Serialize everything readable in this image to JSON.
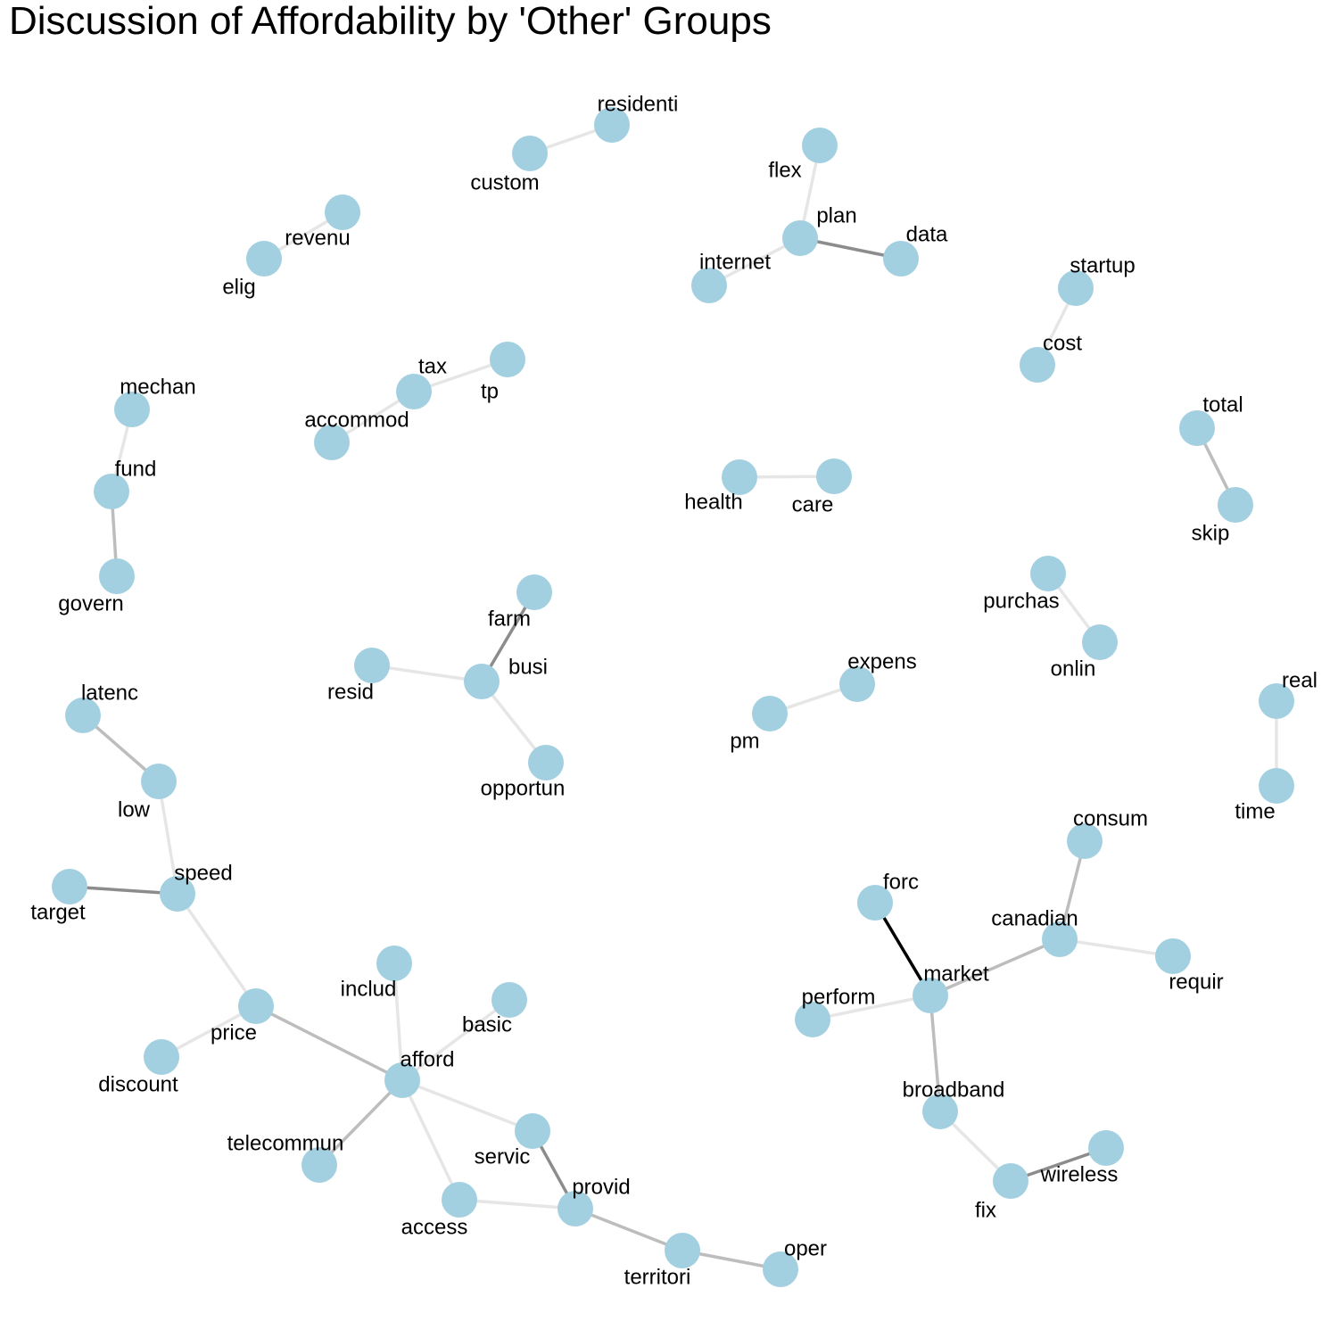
{
  "title": "Discussion of Affordability by 'Other' Groups",
  "colors": {
    "node_fill": "#a3d0e0",
    "edge_light": "#e6e6e6",
    "edge_mid": "#bdbdbd",
    "edge_dark": "#8c8c8c",
    "edge_black": "#000000"
  },
  "nodes": [
    {
      "id": "residenti",
      "label": "residenti"
    },
    {
      "id": "custom",
      "label": "custom"
    },
    {
      "id": "flex",
      "label": "flex"
    },
    {
      "id": "plan",
      "label": "plan"
    },
    {
      "id": "data",
      "label": "data"
    },
    {
      "id": "internet",
      "label": "internet"
    },
    {
      "id": "revenu",
      "label": "revenu"
    },
    {
      "id": "elig",
      "label": "elig"
    },
    {
      "id": "startup",
      "label": "startup"
    },
    {
      "id": "cost",
      "label": "cost"
    },
    {
      "id": "tax",
      "label": "tax"
    },
    {
      "id": "tp",
      "label": "tp"
    },
    {
      "id": "accommod",
      "label": "accommod"
    },
    {
      "id": "mechan",
      "label": "mechan"
    },
    {
      "id": "fund",
      "label": "fund"
    },
    {
      "id": "govern",
      "label": "govern"
    },
    {
      "id": "total",
      "label": "total"
    },
    {
      "id": "skip",
      "label": "skip"
    },
    {
      "id": "health",
      "label": "health"
    },
    {
      "id": "care",
      "label": "care"
    },
    {
      "id": "purchas",
      "label": "purchas"
    },
    {
      "id": "onlin",
      "label": "onlin"
    },
    {
      "id": "farm",
      "label": "farm"
    },
    {
      "id": "busi",
      "label": "busi"
    },
    {
      "id": "resid",
      "label": "resid"
    },
    {
      "id": "opportun",
      "label": "opportun"
    },
    {
      "id": "expens",
      "label": "expens"
    },
    {
      "id": "pm",
      "label": "pm"
    },
    {
      "id": "real",
      "label": "real"
    },
    {
      "id": "time",
      "label": "time"
    },
    {
      "id": "latenc",
      "label": "latenc"
    },
    {
      "id": "low",
      "label": "low"
    },
    {
      "id": "speed",
      "label": "speed"
    },
    {
      "id": "target",
      "label": "target"
    },
    {
      "id": "price",
      "label": "price"
    },
    {
      "id": "discount",
      "label": "discount"
    },
    {
      "id": "includ",
      "label": "includ"
    },
    {
      "id": "basic",
      "label": "basic"
    },
    {
      "id": "afford",
      "label": "afford"
    },
    {
      "id": "telecommun",
      "label": "telecommun"
    },
    {
      "id": "servic",
      "label": "servic"
    },
    {
      "id": "access",
      "label": "access"
    },
    {
      "id": "provid",
      "label": "provid"
    },
    {
      "id": "territori",
      "label": "territori"
    },
    {
      "id": "oper",
      "label": "oper"
    },
    {
      "id": "consum",
      "label": "consum"
    },
    {
      "id": "forc",
      "label": "forc"
    },
    {
      "id": "canadian",
      "label": "canadian"
    },
    {
      "id": "requir",
      "label": "requir"
    },
    {
      "id": "market",
      "label": "market"
    },
    {
      "id": "perform",
      "label": "perform"
    },
    {
      "id": "broadband",
      "label": "broadband"
    },
    {
      "id": "wireless",
      "label": "wireless"
    },
    {
      "id": "fix",
      "label": "fix"
    }
  ],
  "edges": [
    {
      "source": "custom",
      "target": "residenti",
      "strength": "light"
    },
    {
      "source": "flex",
      "target": "plan",
      "strength": "light"
    },
    {
      "source": "plan",
      "target": "data",
      "strength": "dark"
    },
    {
      "source": "plan",
      "target": "internet",
      "strength": "light"
    },
    {
      "source": "elig",
      "target": "revenu",
      "strength": "light"
    },
    {
      "source": "cost",
      "target": "startup",
      "strength": "light"
    },
    {
      "source": "accommod",
      "target": "tax",
      "strength": "light"
    },
    {
      "source": "tax",
      "target": "tp",
      "strength": "light"
    },
    {
      "source": "mechan",
      "target": "fund",
      "strength": "light"
    },
    {
      "source": "fund",
      "target": "govern",
      "strength": "mid"
    },
    {
      "source": "total",
      "target": "skip",
      "strength": "mid"
    },
    {
      "source": "health",
      "target": "care",
      "strength": "light"
    },
    {
      "source": "purchas",
      "target": "onlin",
      "strength": "light"
    },
    {
      "source": "farm",
      "target": "busi",
      "strength": "dark"
    },
    {
      "source": "resid",
      "target": "busi",
      "strength": "light"
    },
    {
      "source": "busi",
      "target": "opportun",
      "strength": "light"
    },
    {
      "source": "pm",
      "target": "expens",
      "strength": "light"
    },
    {
      "source": "real",
      "target": "time",
      "strength": "light"
    },
    {
      "source": "latenc",
      "target": "low",
      "strength": "mid"
    },
    {
      "source": "low",
      "target": "speed",
      "strength": "light"
    },
    {
      "source": "target",
      "target": "speed",
      "strength": "dark"
    },
    {
      "source": "speed",
      "target": "price",
      "strength": "light"
    },
    {
      "source": "price",
      "target": "discount",
      "strength": "light"
    },
    {
      "source": "price",
      "target": "afford",
      "strength": "mid"
    },
    {
      "source": "includ",
      "target": "afford",
      "strength": "light"
    },
    {
      "source": "basic",
      "target": "afford",
      "strength": "light"
    },
    {
      "source": "afford",
      "target": "telecommun",
      "strength": "mid"
    },
    {
      "source": "afford",
      "target": "servic",
      "strength": "light"
    },
    {
      "source": "afford",
      "target": "access",
      "strength": "light"
    },
    {
      "source": "servic",
      "target": "provid",
      "strength": "dark"
    },
    {
      "source": "access",
      "target": "provid",
      "strength": "light"
    },
    {
      "source": "provid",
      "target": "territori",
      "strength": "mid"
    },
    {
      "source": "territori",
      "target": "oper",
      "strength": "mid"
    },
    {
      "source": "consum",
      "target": "canadian",
      "strength": "mid"
    },
    {
      "source": "canadian",
      "target": "requir",
      "strength": "light"
    },
    {
      "source": "canadian",
      "target": "market",
      "strength": "mid"
    },
    {
      "source": "forc",
      "target": "market",
      "strength": "black"
    },
    {
      "source": "perform",
      "target": "market",
      "strength": "light"
    },
    {
      "source": "market",
      "target": "broadband",
      "strength": "mid"
    },
    {
      "source": "broadband",
      "target": "fix",
      "strength": "light"
    },
    {
      "source": "fix",
      "target": "wireless",
      "strength": "dark"
    }
  ]
}
